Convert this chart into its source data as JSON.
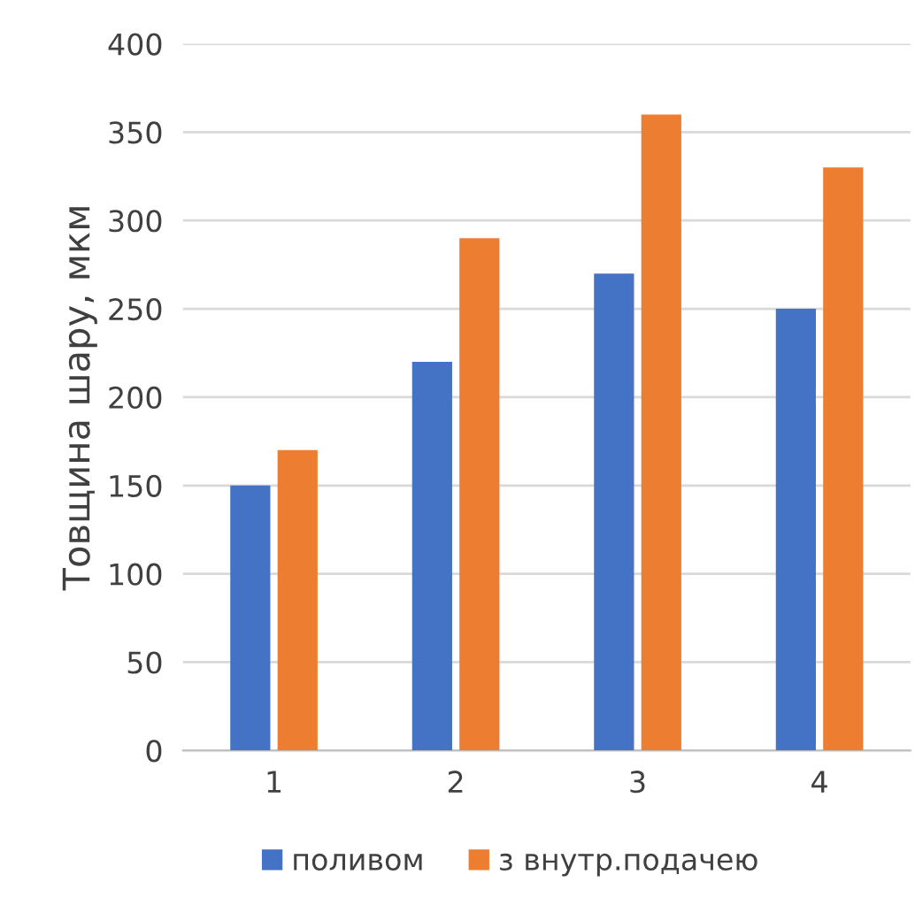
{
  "chart_data": {
    "type": "bar",
    "ylabel": "Товщина шару, мкм",
    "categories": [
      "1",
      "2",
      "3",
      "4"
    ],
    "series": [
      {
        "name": "поливом",
        "color": "#4472c4",
        "values": [
          150,
          220,
          270,
          250
        ]
      },
      {
        "name": "з внутр.подачею",
        "color": "#ed7d31",
        "values": [
          170,
          290,
          360,
          330
        ]
      }
    ],
    "ylim": [
      0,
      400
    ],
    "yticks": [
      0,
      50,
      100,
      150,
      200,
      250,
      300,
      350,
      400
    ],
    "grid": "y",
    "legend": "bottom"
  }
}
